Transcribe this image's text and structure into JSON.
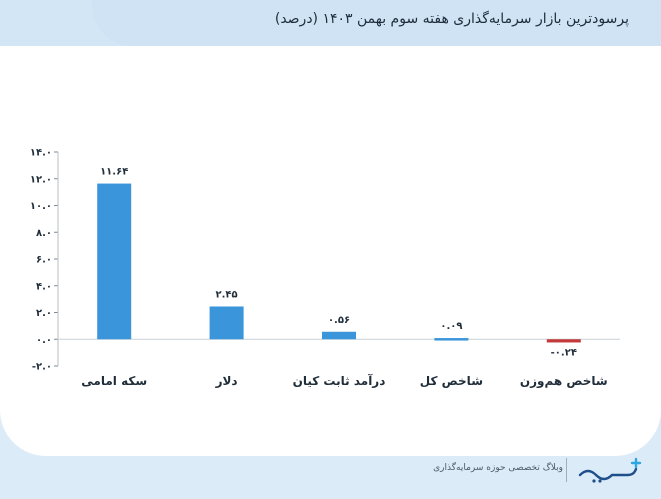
{
  "header": {
    "title": "پرسودترین بازار سرمایه‌گذاری هفته سوم بهمن ۱۴۰۳ (درصد)"
  },
  "footer": {
    "tagline": "وبلاگ تخصصی حوزه سرمایه‌گذاری",
    "logo_text": "سرمایه"
  },
  "colors": {
    "positive": "#3b95da",
    "negative": "#c4393a",
    "header_bg": "#d3e6f6",
    "text": "#1f2d3a"
  },
  "chart_data": {
    "type": "bar",
    "categories": [
      "سکه امامی",
      "دلار",
      "درآمد ثابت کیان",
      "شاخص کل",
      "شاخص هم‌وزن"
    ],
    "values": [
      11.64,
      2.45,
      0.56,
      0.09,
      -0.24
    ],
    "value_labels": [
      "۱۱.۶۴",
      "۲.۴۵",
      "۰.۵۶",
      "۰.۰۹",
      "-۰.۲۴"
    ],
    "yticks": [
      -2,
      0,
      2,
      4,
      6,
      8,
      10,
      12,
      14
    ],
    "ytick_labels": [
      "-۲.۰",
      "۰.۰",
      "۲.۰",
      "۴.۰",
      "۶.۰",
      "۸.۰",
      "۱۰.۰",
      "۱۲.۰",
      "۱۴.۰"
    ],
    "ylim": [
      -2,
      14
    ],
    "grid": false,
    "legend": "none"
  }
}
